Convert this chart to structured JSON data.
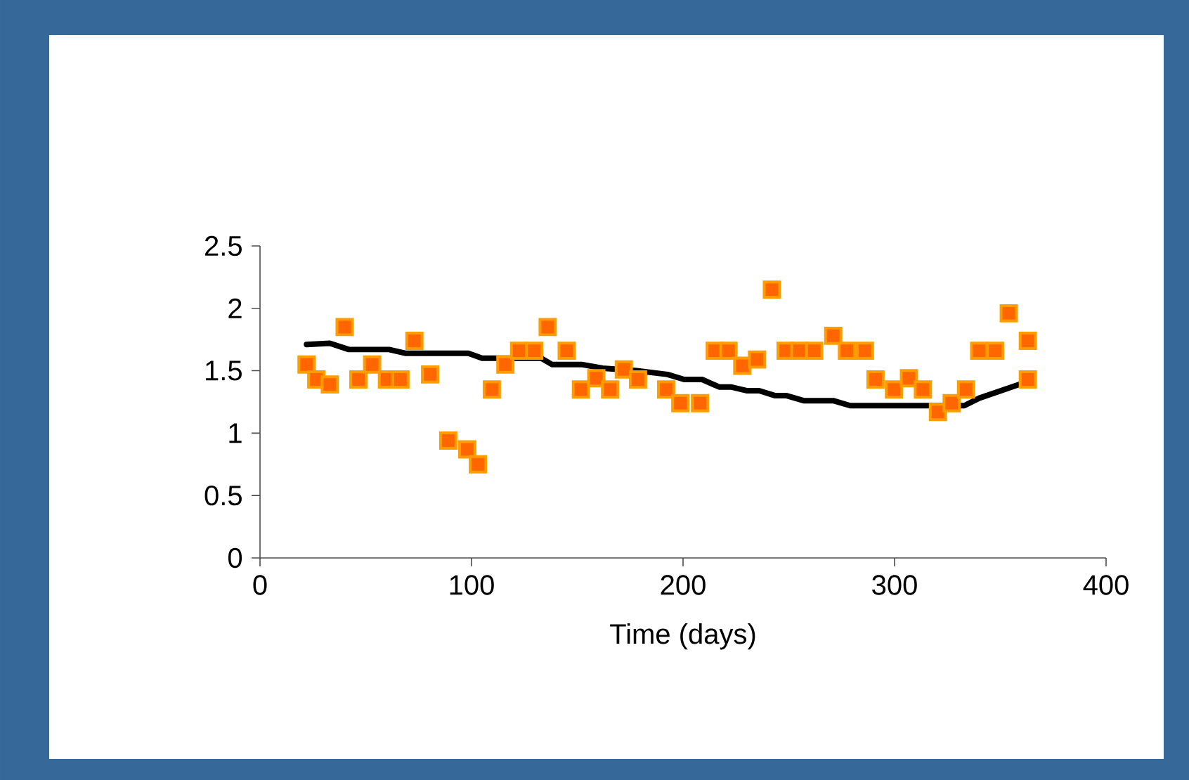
{
  "chart_data": {
    "type": "scatter",
    "xlabel": "Time (days)",
    "xlim": [
      0,
      400
    ],
    "xticks": [
      0,
      100,
      200,
      300,
      400
    ],
    "ylim": [
      0,
      2.5
    ],
    "yticks": [
      0,
      0.5,
      1,
      1.5,
      2,
      2.5
    ],
    "series": [
      {
        "marker": "square",
        "color": "#ff6600",
        "x": [
          22,
          26.6,
          33,
          40,
          46.5,
          53,
          60,
          66.4,
          73,
          80.4,
          89,
          98,
          103,
          109.6,
          116,
          122.5,
          129.6,
          136,
          145,
          151.7,
          159,
          165.5,
          172,
          178.7,
          192,
          198.7,
          208,
          215,
          221.5,
          228,
          235,
          242,
          248.5,
          255,
          262,
          271,
          277.5,
          286,
          291,
          299.7,
          306.8,
          313.4,
          320.5,
          327,
          333.8,
          340,
          347.5,
          354,
          363,
          363
        ],
        "values": [
          1.55,
          1.43,
          1.39,
          1.85,
          1.43,
          1.55,
          1.43,
          1.43,
          1.74,
          1.47,
          0.94,
          0.87,
          0.75,
          1.35,
          1.55,
          1.66,
          1.66,
          1.85,
          1.66,
          1.35,
          1.44,
          1.35,
          1.51,
          1.43,
          1.35,
          1.24,
          1.24,
          1.66,
          1.66,
          1.54,
          1.59,
          2.15,
          1.66,
          1.66,
          1.66,
          1.78,
          1.66,
          1.66,
          1.43,
          1.35,
          1.44,
          1.35,
          1.17,
          1.24,
          1.35,
          1.66,
          1.66,
          1.96,
          1.74,
          1.43
        ]
      },
      {
        "type": "line",
        "marker": "none",
        "color": "#000000",
        "x": [
          22,
          33,
          42,
          61,
          68.6,
          98.5,
          105,
          133,
          138,
          152,
          162,
          178,
          192.7,
          200.5,
          209,
          217,
          222.6,
          230,
          236,
          243.6,
          249,
          257,
          271,
          279,
          333,
          340,
          359
        ],
        "values": [
          1.71,
          1.72,
          1.67,
          1.67,
          1.64,
          1.64,
          1.6,
          1.6,
          1.55,
          1.55,
          1.52,
          1.5,
          1.47,
          1.43,
          1.43,
          1.37,
          1.37,
          1.34,
          1.34,
          1.3,
          1.3,
          1.26,
          1.26,
          1.22,
          1.22,
          1.28,
          1.39
        ]
      }
    ]
  }
}
